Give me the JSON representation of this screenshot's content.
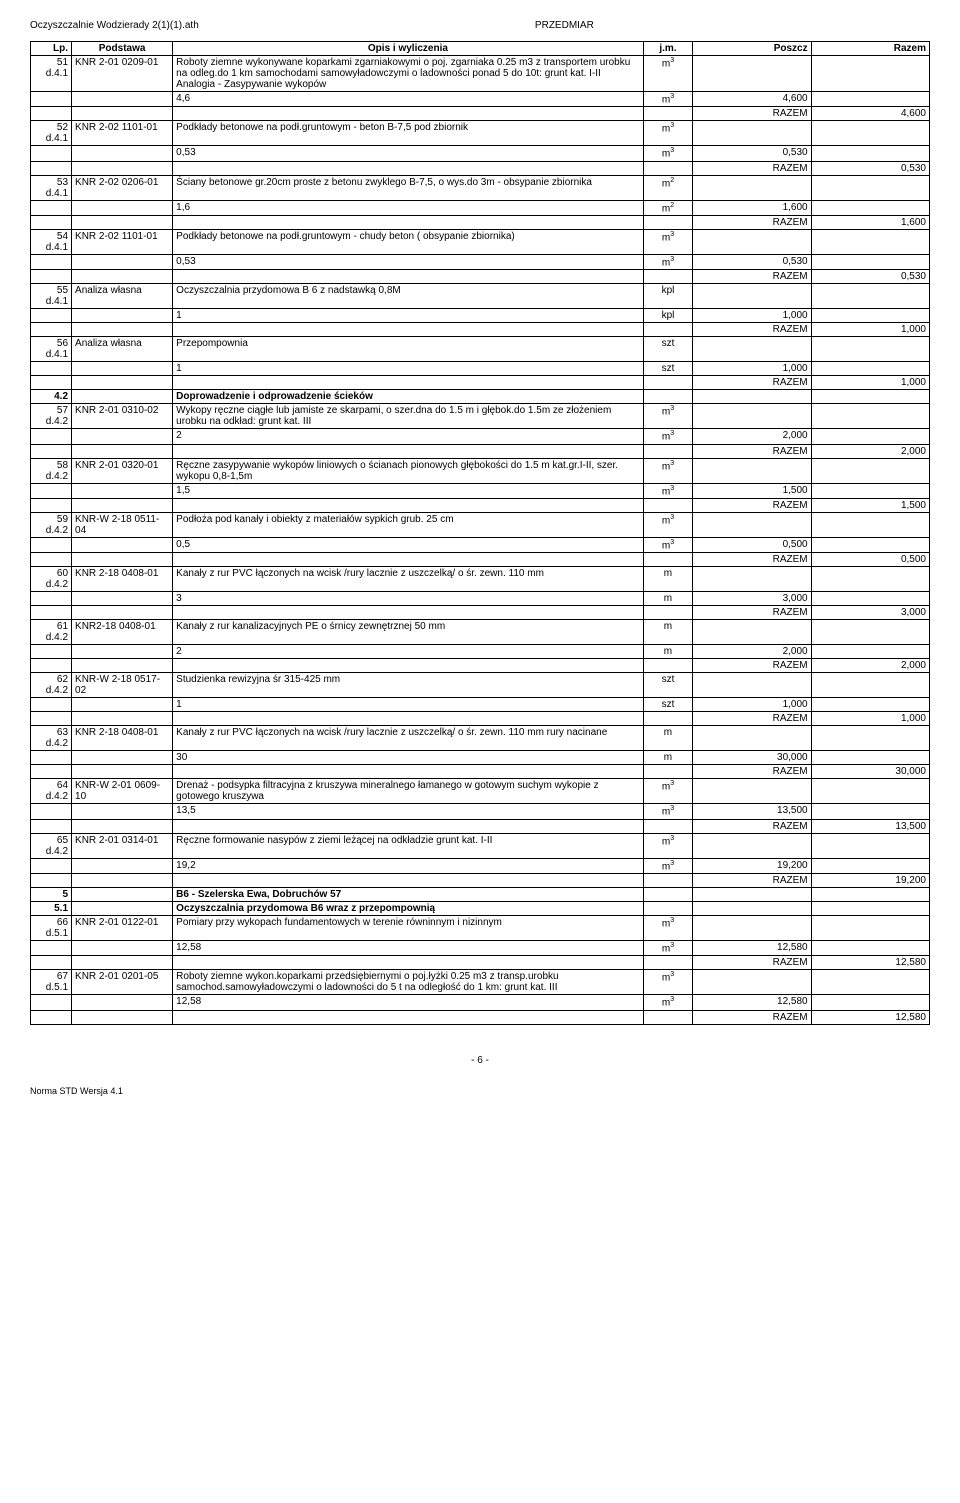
{
  "header": {
    "left": "Oczyszczalnie Wodzierady 2(1)(1).ath",
    "center": "PRZEDMIAR"
  },
  "columns": {
    "lp": "Lp.",
    "podstawa": "Podstawa",
    "opis": "Opis i wyliczenia",
    "jm": "j.m.",
    "poszcz": "Poszcz",
    "razem": "Razem"
  },
  "rows": [
    {
      "type": "item",
      "lp": "51",
      "lp2": "d.4.1",
      "podstawa": "KNR 2-01 0209-01",
      "opis": "Roboty ziemne wykonywane koparkami zgarniakowymi o poj. zgarniaka 0.25 m3  z transportem urobku na odleg.do 1 km samochodami samowyładowczymi o ladowności ponad 5 do 10t: grunt kat. I-II\nAnalogia - Zasypywanie wykopów",
      "jm": "m³"
    },
    {
      "type": "calc",
      "opis": "4,6",
      "jm": "m³",
      "poszcz": "4,600"
    },
    {
      "type": "razem",
      "razem": "4,600"
    },
    {
      "type": "item",
      "lp": "52",
      "lp2": "d.4.1",
      "podstawa": "KNR 2-02 1101-01",
      "opis": "Podkłady betonowe na podł.gruntowym - beton B-7,5 pod zbiornik",
      "jm": "m³"
    },
    {
      "type": "calc",
      "opis": "0,53",
      "jm": "m³",
      "poszcz": "0,530"
    },
    {
      "type": "razem",
      "razem": "0,530"
    },
    {
      "type": "item",
      "lp": "53",
      "lp2": "d.4.1",
      "podstawa": "KNR 2-02 0206-01",
      "opis": "Ściany betonowe gr.20cm proste z betonu zwyklego B-7,5, o wys.do 3m - obsypanie zbiornika",
      "jm": "m²"
    },
    {
      "type": "calc",
      "opis": "1,6",
      "jm": "m²",
      "poszcz": "1,600"
    },
    {
      "type": "razem",
      "razem": "1,600"
    },
    {
      "type": "item",
      "lp": "54",
      "lp2": "d.4.1",
      "podstawa": "KNR 2-02 1101-01",
      "opis": "Podkłady betonowe na podł.gruntowym - chudy beton ( obsypanie zbiornika)",
      "jm": "m³"
    },
    {
      "type": "calc",
      "opis": "0,53",
      "jm": "m³",
      "poszcz": "0,530"
    },
    {
      "type": "razem",
      "razem": "0,530"
    },
    {
      "type": "item",
      "lp": "55",
      "lp2": "d.4.1",
      "podstawa": "Analiza własna",
      "opis": "Oczyszczalnia przydomowa B 6 z nadstawką 0,8M",
      "jm": "kpl"
    },
    {
      "type": "calc",
      "opis": "1",
      "jm": "kpl",
      "poszcz": "1,000"
    },
    {
      "type": "razem",
      "razem": "1,000"
    },
    {
      "type": "item",
      "lp": "56",
      "lp2": "d.4.1",
      "podstawa": "Analiza własna",
      "opis": "Przepompownia",
      "jm": "szt"
    },
    {
      "type": "calc",
      "opis": "1",
      "jm": "szt",
      "poszcz": "1,000"
    },
    {
      "type": "razem",
      "razem": "1,000"
    },
    {
      "type": "section",
      "lp": "4.2",
      "opis": "Doprowadzenie i odprowadzenie ścieków"
    },
    {
      "type": "item",
      "lp": "57",
      "lp2": "d.4.2",
      "podstawa": "KNR 2-01 0310-02",
      "opis": "Wykopy ręczne ciągłe lub jamiste ze skarpami, o szer.dna do 1.5 m i głębok.do 1.5m ze złożeniem urobku na odkład: grunt kat. III",
      "jm": "m³"
    },
    {
      "type": "calc",
      "opis": "2",
      "jm": "m³",
      "poszcz": "2,000"
    },
    {
      "type": "razem",
      "razem": "2,000"
    },
    {
      "type": "item",
      "lp": "58",
      "lp2": "d.4.2",
      "podstawa": "KNR 2-01 0320-01",
      "opis": "Ręczne zasypywanie wykopów liniowych o ścianach pionowych głębokości do 1.5 m kat.gr.I-II, szer. wykopu 0,8-1,5m",
      "jm": "m³"
    },
    {
      "type": "calc",
      "opis": "1,5",
      "jm": "m³",
      "poszcz": "1,500"
    },
    {
      "type": "razem",
      "razem": "1,500"
    },
    {
      "type": "item",
      "lp": "59",
      "lp2": "d.4.2",
      "podstawa": "KNR-W 2-18 0511-04",
      "opis": "Podłoża pod kanały i obiekty z materiałów sypkich grub. 25 cm",
      "jm": "m³"
    },
    {
      "type": "calc",
      "opis": "0,5",
      "jm": "m³",
      "poszcz": "0,500"
    },
    {
      "type": "razem",
      "razem": "0,500"
    },
    {
      "type": "item",
      "lp": "60",
      "lp2": "d.4.2",
      "podstawa": "KNR 2-18 0408-01",
      "opis": "Kanały z rur PVC łączonych na wcisk /rury lacznie z uszczelką/ o śr. zewn. 110 mm",
      "jm": "m"
    },
    {
      "type": "calc",
      "opis": "3",
      "jm": "m",
      "poszcz": "3,000"
    },
    {
      "type": "razem",
      "razem": "3,000"
    },
    {
      "type": "item",
      "lp": "61",
      "lp2": "d.4.2",
      "podstawa": "KNR2-18 0408-01",
      "opis": "Kanały z rur kanalizacyjnych PE o śrnicy zewnętrznej 50 mm",
      "jm": "m"
    },
    {
      "type": "calc",
      "opis": "2",
      "jm": "m",
      "poszcz": "2,000"
    },
    {
      "type": "razem",
      "razem": "2,000"
    },
    {
      "type": "item",
      "lp": "62",
      "lp2": "d.4.2",
      "podstawa": "KNR-W 2-18 0517-02",
      "opis": "Studzienka rewizyjna śr 315-425 mm",
      "jm": "szt"
    },
    {
      "type": "calc",
      "opis": "1",
      "jm": "szt",
      "poszcz": "1,000"
    },
    {
      "type": "razem",
      "razem": "1,000"
    },
    {
      "type": "item",
      "lp": "63",
      "lp2": "d.4.2",
      "podstawa": "KNR 2-18 0408-01",
      "opis": "Kanały z rur PVC łączonych na wcisk /rury lacznie z uszczelką/ o śr. zewn. 110 mm rury nacinane",
      "jm": "m"
    },
    {
      "type": "calc",
      "opis": "30",
      "jm": "m",
      "poszcz": "30,000"
    },
    {
      "type": "razem",
      "razem": "30,000"
    },
    {
      "type": "item",
      "lp": "64",
      "lp2": "d.4.2",
      "podstawa": "KNR-W 2-01 0609-10",
      "opis": "Drenaż - podsypka filtracyjna z kruszywa mineralnego łamanego w gotowym suchym wykopie z gotowego kruszywa",
      "jm": "m³"
    },
    {
      "type": "calc",
      "opis": "13,5",
      "jm": "m³",
      "poszcz": "13,500"
    },
    {
      "type": "razem",
      "razem": "13,500"
    },
    {
      "type": "item",
      "lp": "65",
      "lp2": "d.4.2",
      "podstawa": "KNR 2-01 0314-01",
      "opis": "Ręczne formowanie nasypów z ziemi leżącej na odkładzie grunt kat. I-II",
      "jm": "m³"
    },
    {
      "type": "calc",
      "opis": "19,2",
      "jm": "m³",
      "poszcz": "19,200"
    },
    {
      "type": "razem",
      "razem": "19,200"
    },
    {
      "type": "section",
      "lp": "5",
      "opis": "B6 - Szelerska Ewa, Dobruchów 57"
    },
    {
      "type": "section",
      "lp": "5.1",
      "opis": "Oczyszczalnia przydomowa B6 wraz z przepompownią"
    },
    {
      "type": "item",
      "lp": "66",
      "lp2": "d.5.1",
      "podstawa": "KNR 2-01 0122-01",
      "opis": "Pomiary przy wykopach fundamentowych w terenie równinnym i nizinnym",
      "jm": "m³"
    },
    {
      "type": "calc",
      "opis": "12,58",
      "jm": "m³",
      "poszcz": "12,580"
    },
    {
      "type": "razem",
      "razem": "12,580"
    },
    {
      "type": "item",
      "lp": "67",
      "lp2": "d.5.1",
      "podstawa": "KNR 2-01 0201-05",
      "opis": "Roboty ziemne wykon.koparkami przedsiębiernymi o poj.łyżki 0.25 m3 z transp.urobku samochod.samowyładowczymi o ladowności do 5 t  na odległość do 1 km: grunt kat. III",
      "jm": "m³"
    },
    {
      "type": "calc",
      "opis": "12,58",
      "jm": "m³",
      "poszcz": "12,580"
    },
    {
      "type": "razem",
      "razem": "12,580"
    }
  ],
  "razemLabel": "RAZEM",
  "footer": {
    "page": "- 6 -",
    "norma": "Norma STD Wersja 4.1"
  }
}
